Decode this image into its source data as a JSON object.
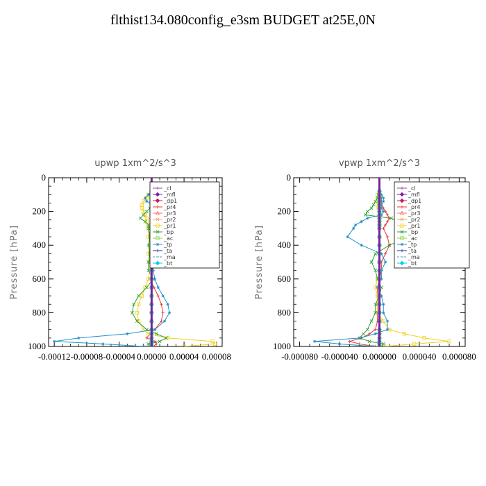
{
  "page": {
    "title": "flthist134.080config_e3sm  BUDGET at25E,0N"
  },
  "chart_data": [
    {
      "type": "line",
      "title": "upwp   1xm^2/s^3",
      "ylabel": "Pressure [hPa]",
      "xlim": [
        -0.000127,
        8.7e-05
      ],
      "ylim": [
        1000,
        0
      ],
      "yticks": [
        0,
        200,
        400,
        600,
        800,
        1000
      ],
      "xticks": [
        -0.00012,
        -8e-05,
        -4e-05,
        0.0,
        4e-05,
        8e-05
      ],
      "xtick_labels": [
        "-0.00012",
        "-0.00008",
        "-0.00004",
        "0.00000",
        "0.00004",
        "0.00008"
      ],
      "ytick_labels": [
        "0",
        "200",
        "400",
        "600",
        "800",
        "1000"
      ],
      "levels": [
        80,
        100,
        120,
        140,
        160,
        180,
        200,
        220,
        240,
        260,
        280,
        300,
        350,
        400,
        450,
        500,
        550,
        600,
        650,
        700,
        750,
        800,
        850,
        900,
        925,
        950,
        970,
        985,
        1000
      ],
      "series": [
        {
          "name": "_cl",
          "color": "#8e44ad",
          "marker": "+",
          "values": [
            0,
            0,
            0,
            0,
            0,
            0,
            0,
            0,
            0,
            0,
            0,
            0,
            0,
            0,
            0,
            0,
            0,
            0,
            0,
            0,
            0,
            0,
            0,
            0,
            0,
            0,
            0,
            0,
            0
          ]
        },
        {
          "name": "_mfl",
          "color": "#7a1fa2",
          "marker": "diamond",
          "values": [
            0,
            0,
            0,
            0,
            0,
            0,
            0,
            0,
            0,
            0,
            0,
            0,
            0,
            0,
            0,
            0,
            0,
            0,
            0,
            0,
            0,
            0,
            0,
            0,
            0,
            0,
            0,
            0,
            0
          ]
        },
        {
          "name": "_dp1",
          "color": "#c2185b",
          "marker": "diamond",
          "values": [
            0,
            0,
            0,
            0,
            0,
            0,
            0,
            0,
            0,
            0,
            0,
            0,
            0,
            0,
            0,
            0,
            0,
            0,
            0,
            0,
            0,
            0,
            0,
            0,
            0,
            0,
            0,
            0,
            0
          ]
        },
        {
          "name": "_pr4",
          "color": "#e53935",
          "marker": "+",
          "values": [
            0,
            2e-06,
            4e-06,
            6e-06,
            4e-06,
            3e-06,
            6e-06,
            4e-06,
            2e-06,
            3e-06,
            2e-06,
            2e-06,
            -2e-06,
            2e-06,
            -2e-06,
            2e-06,
            1e-06,
            -2e-06,
            3e-06,
            8e-06,
            1.2e-05,
            1.4e-05,
            1.2e-05,
            4e-06,
            -2e-06,
            -6e-06,
            4e-06,
            6e-06,
            2e-06
          ]
        },
        {
          "name": "_pr3",
          "color": "#ff6f61",
          "marker": "triangle",
          "values": [
            0,
            0,
            0,
            1e-06,
            0,
            0,
            0,
            0,
            0,
            0,
            0,
            0,
            0,
            0,
            0,
            0,
            0,
            0,
            0,
            0,
            0,
            0,
            0,
            0,
            0,
            0,
            0,
            0,
            0
          ]
        },
        {
          "name": "_pr2",
          "color": "#f4a460",
          "marker": "x",
          "values": [
            0,
            -1e-06,
            0,
            0,
            0,
            0,
            0,
            0,
            0,
            0,
            0,
            0,
            0,
            0,
            0,
            0,
            0,
            0,
            0,
            0,
            0,
            0,
            0,
            0,
            0,
            0,
            0,
            0,
            0
          ]
        },
        {
          "name": "_pr1",
          "color": "#f0d020",
          "marker": "square",
          "values": [
            0,
            -4e-06,
            -6e-06,
            -1e-05,
            -1.2e-05,
            -1.2e-05,
            -1e-05,
            -8e-06,
            -6e-06,
            -6e-06,
            -4e-06,
            -4e-06,
            -4e-06,
            -2e-06,
            -4e-06,
            -2e-06,
            -2e-06,
            -4e-06,
            -8e-06,
            -1.2e-05,
            -1.6e-05,
            -1.8e-05,
            -1.6e-05,
            -1e-05,
            -4e-06,
            2e-05,
            7.5e-05,
            7.8e-05,
            4e-05
          ]
        },
        {
          "name": "_bp",
          "color": "#2e9e2e",
          "marker": "x",
          "values": [
            0,
            4e-06,
            6e-06,
            8e-06,
            4e-06,
            -2e-06,
            -6e-06,
            -1e-05,
            -1.4e-05,
            -8e-06,
            -4e-06,
            -4e-06,
            -2e-06,
            -4e-06,
            -2e-06,
            -4e-06,
            -4e-06,
            2e-06,
            -6e-06,
            -1.6e-05,
            -2.2e-05,
            -2.4e-05,
            -1.8e-05,
            -6e-06,
            6e-06,
            1.8e-05,
            1e-05,
            -4e-06,
            -2e-06
          ]
        },
        {
          "name": "_ac",
          "color": "#8bd14a",
          "marker": "square",
          "values": [
            0,
            0,
            0,
            0,
            0,
            0,
            0,
            0,
            0,
            0,
            0,
            0,
            0,
            0,
            0,
            0,
            0,
            0,
            0,
            0,
            0,
            0,
            0,
            0,
            0,
            0,
            0,
            0,
            0
          ]
        },
        {
          "name": "_tp",
          "color": "#1f8fc8",
          "marker": "star",
          "values": [
            0,
            -4e-06,
            -8e-06,
            -6e-06,
            2e-06,
            6e-06,
            8e-06,
            6e-06,
            8e-06,
            4e-06,
            3e-06,
            2e-06,
            4e-06,
            2e-06,
            4e-06,
            2e-06,
            2e-06,
            4e-06,
            8e-06,
            1.4e-05,
            2e-05,
            2.2e-05,
            1.6e-05,
            4e-06,
            -3e-05,
            -9e-05,
            -0.00012,
            -6e-05,
            -1e-05
          ]
        },
        {
          "name": "_ta",
          "color": "#223399",
          "marker": "+",
          "values": [
            0,
            0,
            0,
            0,
            0,
            0,
            0,
            0,
            0,
            0,
            0,
            0,
            0,
            0,
            0,
            0,
            0,
            0,
            0,
            0,
            0,
            0,
            0,
            0,
            0,
            0,
            0,
            0,
            0
          ]
        },
        {
          "name": "_ma",
          "color": "#5a8fb0",
          "marker": "dash",
          "values": [
            0,
            0,
            0,
            0,
            0,
            0,
            0,
            0,
            0,
            0,
            0,
            0,
            0,
            0,
            0,
            0,
            0,
            0,
            0,
            0,
            0,
            0,
            0,
            0,
            0,
            0,
            0,
            0,
            0
          ]
        },
        {
          "name": "_bt",
          "color": "#00ccee",
          "marker": "diamond",
          "values": [
            0,
            0,
            0,
            0,
            0,
            0,
            0,
            0,
            0,
            0,
            0,
            0,
            0,
            0,
            0,
            0,
            0,
            0,
            0,
            0,
            0,
            0,
            0,
            0,
            0,
            0,
            0,
            0,
            0
          ]
        }
      ],
      "legend": "top-right"
    },
    {
      "type": "line",
      "title": "vpwp   1xm^2/s^3",
      "ylabel": "Pressure [hPa]",
      "xlim": [
        -8.6e-05,
        8.6e-05
      ],
      "ylim": [
        1000,
        0
      ],
      "yticks": [
        0,
        200,
        400,
        600,
        800,
        1000
      ],
      "xticks": [
        -8e-05,
        -4e-05,
        0.0,
        4e-05,
        8e-05
      ],
      "xtick_labels": [
        "-0.000080",
        "-0.000040",
        "0.000000",
        "0.000040",
        "0.000080"
      ],
      "ytick_labels": [
        "0",
        "200",
        "400",
        "600",
        "800",
        "1000"
      ],
      "levels": [
        80,
        100,
        120,
        140,
        160,
        180,
        200,
        220,
        240,
        260,
        280,
        300,
        350,
        400,
        450,
        500,
        550,
        600,
        650,
        700,
        750,
        800,
        850,
        900,
        925,
        950,
        970,
        985,
        1000
      ],
      "series": [
        {
          "name": "_cl",
          "color": "#8e44ad",
          "marker": "+",
          "values": [
            0,
            0,
            0,
            0,
            0,
            0,
            0,
            0,
            0,
            0,
            0,
            0,
            0,
            0,
            0,
            0,
            0,
            0,
            0,
            0,
            0,
            0,
            0,
            0,
            0,
            0,
            0,
            0,
            0
          ]
        },
        {
          "name": "_mfl",
          "color": "#7a1fa2",
          "marker": "diamond",
          "values": [
            0,
            0,
            0,
            0,
            0,
            0,
            0,
            0,
            0,
            0,
            0,
            0,
            0,
            0,
            0,
            0,
            0,
            0,
            0,
            0,
            0,
            0,
            0,
            0,
            0,
            0,
            0,
            0,
            0
          ]
        },
        {
          "name": "_dp1",
          "color": "#c2185b",
          "marker": "diamond",
          "values": [
            0,
            0,
            0,
            0,
            0,
            0,
            0,
            0,
            0,
            0,
            0,
            0,
            0,
            0,
            0,
            0,
            0,
            0,
            0,
            0,
            0,
            0,
            0,
            0,
            0,
            0,
            0,
            0,
            0
          ]
        },
        {
          "name": "_pr4",
          "color": "#e53935",
          "marker": "+",
          "values": [
            0,
            1e-06,
            2e-06,
            2e-06,
            2e-06,
            4e-06,
            6e-06,
            8e-06,
            1e-05,
            8e-06,
            6e-06,
            4e-06,
            8e-06,
            1e-05,
            6e-06,
            2e-06,
            2e-06,
            0.0,
            -2e-06,
            -2e-06,
            -2e-06,
            -2e-06,
            -2e-06,
            -4e-06,
            -1e-05,
            -1.8e-05,
            -3e-05,
            -2e-05,
            -4e-06
          ]
        },
        {
          "name": "_pr3",
          "color": "#ff6f61",
          "marker": "triangle",
          "values": [
            0,
            0,
            0,
            0,
            0,
            0,
            0,
            0,
            0,
            0,
            0,
            0,
            0,
            0,
            0,
            0,
            0,
            0,
            0,
            0,
            0,
            0,
            0,
            0,
            0,
            0,
            0,
            0,
            0
          ]
        },
        {
          "name": "_pr2",
          "color": "#f4a460",
          "marker": "x",
          "values": [
            0,
            0,
            0,
            0,
            0,
            0,
            0,
            0,
            0,
            0,
            0,
            0,
            0,
            0,
            0,
            0,
            0,
            0,
            0,
            0,
            0,
            0,
            0,
            0,
            0,
            0,
            0,
            0,
            0
          ]
        },
        {
          "name": "_pr1",
          "color": "#f0d020",
          "marker": "square",
          "values": [
            0,
            -2e-06,
            -2e-06,
            -2e-06,
            -2e-06,
            -1e-06,
            0,
            0,
            0,
            0,
            0,
            0,
            0,
            0,
            0,
            0,
            0,
            -2e-06,
            -4e-06,
            -2e-06,
            -2e-06,
            -2e-06,
            4e-06,
            1e-05,
            2.5e-05,
            4.5e-05,
            7e-05,
            3.5e-05,
            5e-06
          ]
        },
        {
          "name": "_bp",
          "color": "#2e9e2e",
          "marker": "x",
          "values": [
            0,
            -1e-06,
            -2e-06,
            -4e-06,
            -6e-06,
            -8e-06,
            -1.2e-05,
            -1.4e-05,
            1.2e-05,
            1.8e-05,
            2.2e-05,
            2.4e-05,
            3e-05,
            1e-05,
            -4e-06,
            -8e-06,
            -4e-06,
            -2e-06,
            2e-06,
            0.0,
            -4e-06,
            -4e-06,
            -8e-06,
            -1.2e-05,
            -1.6e-05,
            -2e-05,
            -1e-05,
            4e-06,
            2e-06
          ]
        },
        {
          "name": "_ac",
          "color": "#8bd14a",
          "marker": "square",
          "values": [
            0,
            0,
            0,
            0,
            0,
            0,
            0,
            0,
            0,
            0,
            0,
            0,
            0,
            0,
            0,
            0,
            0,
            0,
            0,
            0,
            0,
            0,
            0,
            0,
            0,
            0,
            0,
            0,
            0
          ]
        },
        {
          "name": "_tp",
          "color": "#1f8fc8",
          "marker": "star",
          "values": [
            0,
            2e-06,
            4e-06,
            4e-06,
            2e-06,
            2e-06,
            4e-06,
            2e-06,
            -1.2e-05,
            -1.8e-05,
            -2.4e-05,
            -2.6e-05,
            -3.2e-05,
            -1.8e-05,
            2e-06,
            6e-06,
            2e-06,
            2e-06,
            -2e-06,
            2e-06,
            4e-06,
            4e-06,
            8e-06,
            8e-06,
            -4e-06,
            -2e-05,
            -6.5e-05,
            -4e-05,
            -6e-06
          ]
        },
        {
          "name": "_ta",
          "color": "#223399",
          "marker": "+",
          "values": [
            0,
            0,
            0,
            0,
            0,
            0,
            0,
            0,
            0,
            0,
            0,
            0,
            0,
            0,
            0,
            0,
            0,
            0,
            0,
            0,
            0,
            0,
            0,
            0,
            0,
            0,
            0,
            0,
            0
          ]
        },
        {
          "name": "_ma",
          "color": "#5a8fb0",
          "marker": "dash",
          "values": [
            0,
            0,
            0,
            0,
            0,
            0,
            0,
            0,
            0,
            0,
            0,
            0,
            0,
            0,
            0,
            0,
            0,
            0,
            0,
            0,
            0,
            0,
            0,
            0,
            0,
            0,
            0,
            0,
            0
          ]
        },
        {
          "name": "_bt",
          "color": "#00ccee",
          "marker": "diamond",
          "values": [
            0,
            0,
            0,
            0,
            0,
            0,
            0,
            0,
            0,
            0,
            0,
            0,
            0,
            0,
            0,
            0,
            0,
            0,
            0,
            0,
            0,
            0,
            0,
            0,
            0,
            0,
            0,
            0,
            0
          ]
        }
      ],
      "legend": "top-right"
    }
  ]
}
